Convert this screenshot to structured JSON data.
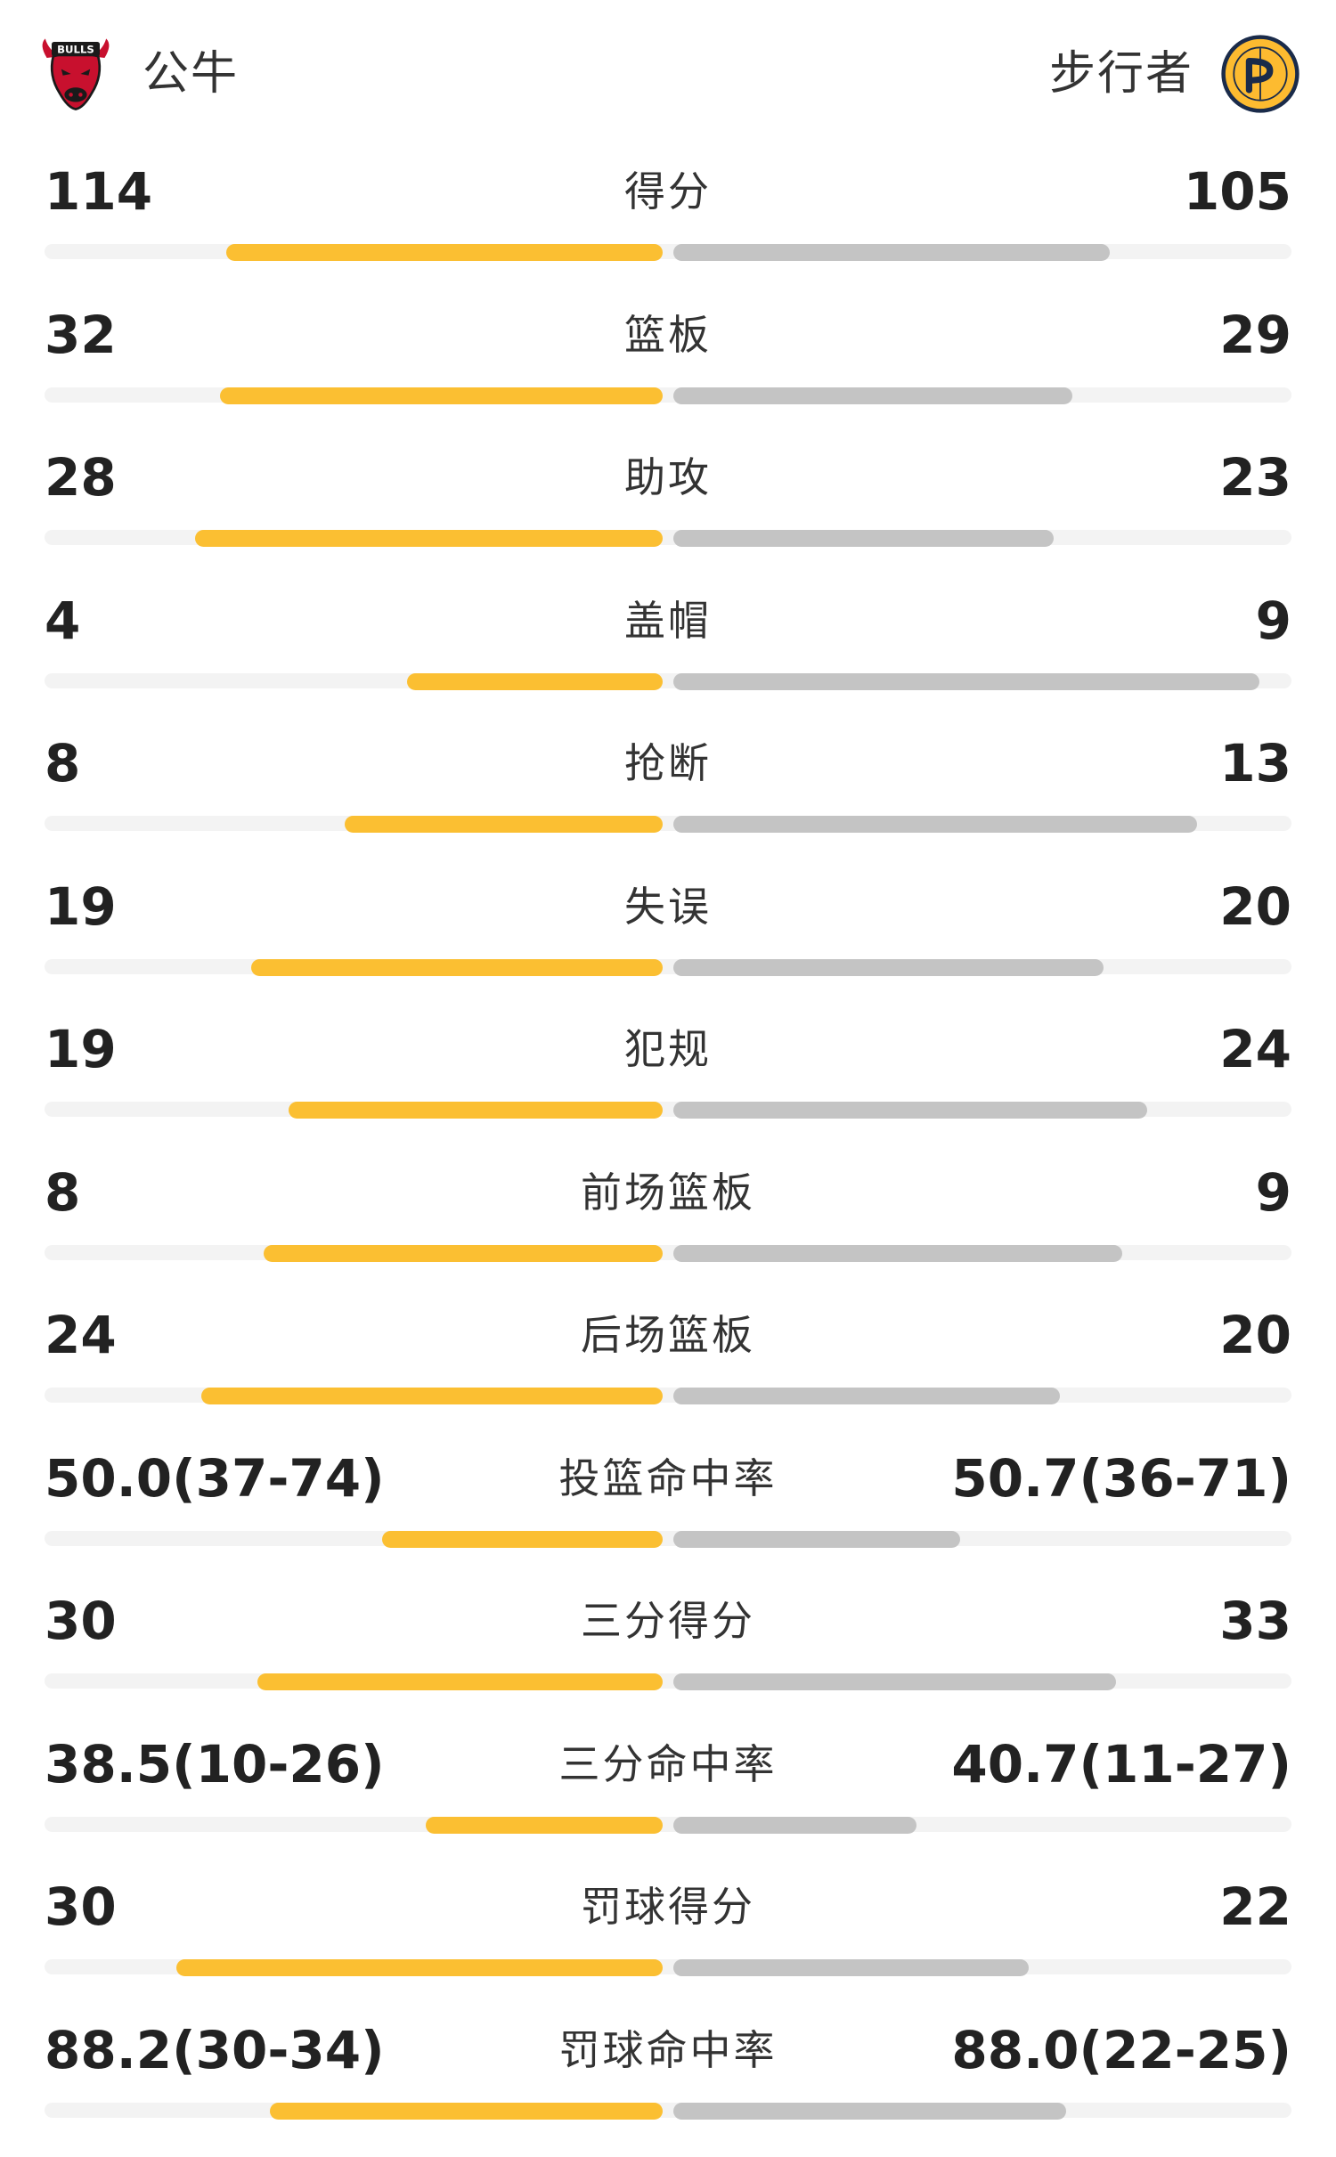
{
  "header": {
    "home_team": "公牛",
    "away_team": "步行者",
    "home_logo_icon": "bulls-logo-icon",
    "away_logo_icon": "pacers-logo-icon"
  },
  "colors": {
    "home_bar": "#fbbf32",
    "away_bar": "#c4c4c4",
    "track": "#f3f3f3"
  },
  "stats": [
    {
      "label": "得分",
      "home": "114",
      "away": "105",
      "home_ratio": 0.7,
      "away_ratio": 0.7
    },
    {
      "label": "篮板",
      "home": "32",
      "away": "29",
      "home_ratio": 0.71,
      "away_ratio": 0.64
    },
    {
      "label": "助攻",
      "home": "28",
      "away": "23",
      "home_ratio": 0.75,
      "away_ratio": 0.61
    },
    {
      "label": "盖帽",
      "home": "4",
      "away": "9",
      "home_ratio": 0.41,
      "away_ratio": 0.94
    },
    {
      "label": "抢断",
      "home": "8",
      "away": "13",
      "home_ratio": 0.51,
      "away_ratio": 0.84
    },
    {
      "label": "失误",
      "home": "19",
      "away": "20",
      "home_ratio": 0.66,
      "away_ratio": 0.69
    },
    {
      "label": "犯规",
      "home": "19",
      "away": "24",
      "home_ratio": 0.6,
      "away_ratio": 0.76
    },
    {
      "label": "前场篮板",
      "home": "8",
      "away": "9",
      "home_ratio": 0.64,
      "away_ratio": 0.72
    },
    {
      "label": "后场篮板",
      "home": "24",
      "away": "20",
      "home_ratio": 0.74,
      "away_ratio": 0.62
    },
    {
      "label": "投篮命中率",
      "home": "50.0(37-74)",
      "away": "50.7(36-71)",
      "home_ratio": 0.45,
      "away_ratio": 0.46
    },
    {
      "label": "三分得分",
      "home": "30",
      "away": "33",
      "home_ratio": 0.65,
      "away_ratio": 0.71
    },
    {
      "label": "三分命中率",
      "home": "38.5(10-26)",
      "away": "40.7(11-27)",
      "home_ratio": 0.38,
      "away_ratio": 0.39
    },
    {
      "label": "罚球得分",
      "home": "30",
      "away": "22",
      "home_ratio": 0.78,
      "away_ratio": 0.57
    },
    {
      "label": "罚球命中率",
      "home": "88.2(30-34)",
      "away": "88.0(22-25)",
      "home_ratio": 0.63,
      "away_ratio": 0.63
    }
  ]
}
